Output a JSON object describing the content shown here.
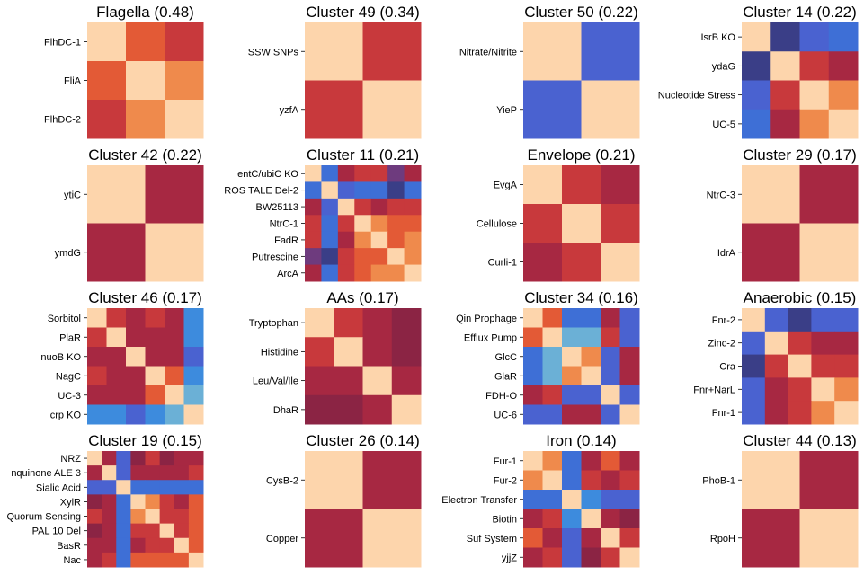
{
  "colors": {
    "diag": "#FDD5AC",
    "pk": "#F7A574",
    "o": "#EF8A4C",
    "r": "#E35A36",
    "rd": "#C8393C",
    "dr": "#A72842",
    "dm": "#8B2444",
    "bl": "#3E6FD6",
    "b2": "#4A62D0",
    "lb": "#6BB0D6",
    "lb2": "#3D8BDD",
    "nv": "#3A3E87",
    "pu": "#6E3B7E"
  },
  "chart_data": [
    {
      "type": "heatmap",
      "title": "Flagella (0.48)",
      "labels": [
        "FlhDC-1",
        "FliA",
        "FlhDC-2"
      ],
      "matrix": [
        [
          "diag",
          "r",
          "rd"
        ],
        [
          "r",
          "diag",
          "o"
        ],
        [
          "rd",
          "o",
          "diag"
        ]
      ]
    },
    {
      "type": "heatmap",
      "title": "Cluster 49 (0.34)",
      "labels": [
        "SSW SNPs",
        "yzfA"
      ],
      "matrix": [
        [
          "diag",
          "rd"
        ],
        [
          "rd",
          "diag"
        ]
      ]
    },
    {
      "type": "heatmap",
      "title": "Cluster 50 (0.22)",
      "labels": [
        "Nitrate/Nitrite",
        "YieP"
      ],
      "matrix": [
        [
          "diag",
          "b2"
        ],
        [
          "b2",
          "diag"
        ]
      ]
    },
    {
      "type": "heatmap",
      "title": "Cluster 14 (0.22)",
      "labels": [
        "IsrB KO",
        "ydaG",
        "Nucleotide Stress",
        "UC-5"
      ],
      "matrix": [
        [
          "diag",
          "nv",
          "b2",
          "bl"
        ],
        [
          "nv",
          "diag",
          "rd",
          "dr"
        ],
        [
          "b2",
          "rd",
          "diag",
          "o"
        ],
        [
          "bl",
          "dr",
          "o",
          "diag"
        ]
      ]
    },
    {
      "type": "heatmap",
      "title": "Cluster 42 (0.22)",
      "labels": [
        "ytiC",
        "ymdG"
      ],
      "matrix": [
        [
          "diag",
          "dr"
        ],
        [
          "dr",
          "diag"
        ]
      ]
    },
    {
      "type": "heatmap",
      "title": "Cluster 11 (0.21)",
      "labels": [
        "entC/ubiC KO",
        "ROS TALE Del-2",
        "BW25113",
        "NtrC-1",
        "FadR",
        "Putrescine",
        "ArcA"
      ],
      "matrix": [
        [
          "diag",
          "bl",
          "dr",
          "rd",
          "rd",
          "pu",
          "dr"
        ],
        [
          "bl",
          "diag",
          "b2",
          "bl",
          "bl",
          "nv",
          "bl"
        ],
        [
          "dr",
          "b2",
          "diag",
          "rd",
          "dr",
          "rd",
          "rd"
        ],
        [
          "rd",
          "bl",
          "rd",
          "diag",
          "o",
          "r",
          "r"
        ],
        [
          "rd",
          "bl",
          "dr",
          "o",
          "diag",
          "r",
          "o"
        ],
        [
          "pu",
          "nv",
          "rd",
          "r",
          "r",
          "diag",
          "o"
        ],
        [
          "dr",
          "bl",
          "rd",
          "r",
          "o",
          "o",
          "diag"
        ]
      ]
    },
    {
      "type": "heatmap",
      "title": "Envelope (0.21)",
      "labels": [
        "EvgA",
        "Cellulose",
        "Curli-1"
      ],
      "matrix": [
        [
          "diag",
          "rd",
          "dr"
        ],
        [
          "rd",
          "diag",
          "rd"
        ],
        [
          "dr",
          "rd",
          "diag"
        ]
      ]
    },
    {
      "type": "heatmap",
      "title": "Cluster 29 (0.17)",
      "labels": [
        "NtrC-3",
        "IdrA"
      ],
      "matrix": [
        [
          "diag",
          "dr"
        ],
        [
          "dr",
          "diag"
        ]
      ]
    },
    {
      "type": "heatmap",
      "title": "Cluster 46 (0.17)",
      "labels": [
        "Sorbitol",
        "PlaR",
        "nuoB KO",
        "NagC",
        "UC-3",
        "crp KO"
      ],
      "matrix": [
        [
          "diag",
          "rd",
          "dr",
          "rd",
          "dr",
          "lb2"
        ],
        [
          "rd",
          "diag",
          "dr",
          "dr",
          "dr",
          "lb2"
        ],
        [
          "dr",
          "dr",
          "diag",
          "dr",
          "dr",
          "b2"
        ],
        [
          "rd",
          "dr",
          "dr",
          "diag",
          "r",
          "lb2"
        ],
        [
          "dr",
          "dr",
          "dr",
          "r",
          "diag",
          "lb"
        ],
        [
          "lb2",
          "lb2",
          "b2",
          "lb2",
          "lb",
          "diag"
        ]
      ]
    },
    {
      "type": "heatmap",
      "title": "AAs (0.17)",
      "labels": [
        "Tryptophan",
        "Histidine",
        "Leu/Val/Ile",
        "DhaR"
      ],
      "matrix": [
        [
          "diag",
          "rd",
          "dr",
          "dm"
        ],
        [
          "rd",
          "diag",
          "dr",
          "dm"
        ],
        [
          "dr",
          "dr",
          "diag",
          "dr"
        ],
        [
          "dm",
          "dm",
          "dr",
          "diag"
        ]
      ]
    },
    {
      "type": "heatmap",
      "title": "Cluster 34 (0.16)",
      "labels": [
        "Qin Prophage",
        "Efflux Pump",
        "GlcC",
        "GlaR",
        "FDH-O",
        "UC-6"
      ],
      "matrix": [
        [
          "diag",
          "r",
          "bl",
          "bl",
          "dr",
          "b2"
        ],
        [
          "r",
          "diag",
          "lb",
          "lb",
          "rd",
          "b2"
        ],
        [
          "bl",
          "lb",
          "diag",
          "o",
          "b2",
          "dr"
        ],
        [
          "bl",
          "lb",
          "o",
          "diag",
          "b2",
          "dr"
        ],
        [
          "dr",
          "rd",
          "b2",
          "b2",
          "diag",
          "b2"
        ],
        [
          "b2",
          "b2",
          "dr",
          "dr",
          "b2",
          "diag"
        ]
      ]
    },
    {
      "type": "heatmap",
      "title": "Anaerobic (0.15)",
      "labels": [
        "Fnr-2",
        "Zinc-2",
        "Cra",
        "Fnr+NarL",
        "Fnr-1"
      ],
      "matrix": [
        [
          "diag",
          "b2",
          "nv",
          "b2",
          "b2"
        ],
        [
          "b2",
          "diag",
          "rd",
          "dr",
          "dr"
        ],
        [
          "nv",
          "rd",
          "diag",
          "rd",
          "rd"
        ],
        [
          "b2",
          "dr",
          "rd",
          "diag",
          "o"
        ],
        [
          "b2",
          "dr",
          "rd",
          "o",
          "diag"
        ]
      ]
    },
    {
      "type": "heatmap",
      "title": "Cluster 19 (0.15)",
      "labels": [
        "NRZ",
        "nquinone ALE 3",
        "Sialic Acid",
        "XylR",
        "Quorum Sensing",
        "PAL 10 Del",
        "BasR",
        "Nac"
      ],
      "matrix": [
        [
          "diag",
          "dr",
          "b2",
          "dm",
          "rd",
          "dm",
          "dr",
          "dr"
        ],
        [
          "dr",
          "diag",
          "b2",
          "dr",
          "dr",
          "dr",
          "dr",
          "rd"
        ],
        [
          "b2",
          "b2",
          "diag",
          "bl",
          "bl",
          "bl",
          "bl",
          "bl"
        ],
        [
          "dm",
          "dr",
          "bl",
          "diag",
          "o",
          "rd",
          "dr",
          "r"
        ],
        [
          "rd",
          "dr",
          "bl",
          "o",
          "diag",
          "rd",
          "rd",
          "r"
        ],
        [
          "dm",
          "dr",
          "bl",
          "rd",
          "rd",
          "diag",
          "rd",
          "r"
        ],
        [
          "dr",
          "dr",
          "bl",
          "dr",
          "rd",
          "rd",
          "diag",
          "r"
        ],
        [
          "dr",
          "rd",
          "bl",
          "r",
          "r",
          "r",
          "r",
          "diag"
        ]
      ]
    },
    {
      "type": "heatmap",
      "title": "Cluster 26 (0.14)",
      "labels": [
        "CysB-2",
        "Copper"
      ],
      "matrix": [
        [
          "diag",
          "dr"
        ],
        [
          "dr",
          "diag"
        ]
      ]
    },
    {
      "type": "heatmap",
      "title": "Iron (0.14)",
      "labels": [
        "Fur-1",
        "Fur-2",
        "Electron Transfer",
        "Biotin",
        "Suf System",
        "yjjZ"
      ],
      "matrix": [
        [
          "diag",
          "o",
          "bl",
          "dr",
          "r",
          "dr"
        ],
        [
          "o",
          "diag",
          "bl",
          "rd",
          "dr",
          "rd"
        ],
        [
          "bl",
          "bl",
          "diag",
          "lb2",
          "b2",
          "b2"
        ],
        [
          "dr",
          "rd",
          "lb2",
          "diag",
          "dr",
          "dm"
        ],
        [
          "r",
          "dr",
          "b2",
          "dr",
          "diag",
          "rd"
        ],
        [
          "dr",
          "rd",
          "b2",
          "dm",
          "rd",
          "diag"
        ]
      ]
    },
    {
      "type": "heatmap",
      "title": "Cluster 44 (0.13)",
      "labels": [
        "PhoB-1",
        "RpoH"
      ],
      "matrix": [
        [
          "diag",
          "dr"
        ],
        [
          "dr",
          "diag"
        ]
      ]
    }
  ]
}
